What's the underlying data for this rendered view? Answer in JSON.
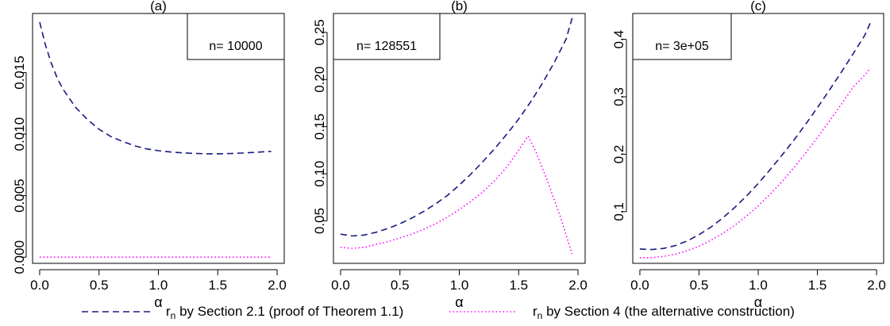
{
  "chart_data": [
    {
      "type": "line",
      "title": "(a)",
      "xlabel": "α",
      "ylabel": "",
      "xlim": [
        -0.06,
        2.06
      ],
      "ylim": [
        -0.0005,
        0.0198
      ],
      "xticks": [
        "0.0",
        "0.5",
        "1.0",
        "1.5",
        "2.0"
      ],
      "xtick_values": [
        0,
        0.5,
        1,
        1.5,
        2
      ],
      "yticks": [
        "0.000",
        "0.005",
        "0.010",
        "0.015"
      ],
      "ytick_values": [
        0,
        0.005,
        0.01,
        0.015
      ],
      "legend_text": "n= 10000",
      "legend_position": "top-right",
      "series": [
        {
          "key": "sec21",
          "x": [
            0,
            0.05,
            0.1,
            0.15,
            0.2,
            0.3,
            0.4,
            0.5,
            0.6,
            0.7,
            0.8,
            0.9,
            1.0,
            1.1,
            1.2,
            1.3,
            1.4,
            1.5,
            1.6,
            1.7,
            1.8,
            1.95
          ],
          "values": [
            0.0191,
            0.0172,
            0.0157,
            0.0145,
            0.0136,
            0.0122,
            0.0112,
            0.0104,
            0.0098,
            0.0094,
            0.00905,
            0.0088,
            0.00865,
            0.00855,
            0.00848,
            0.00843,
            0.0084,
            0.0084,
            0.00842,
            0.00846,
            0.00851,
            0.0086
          ]
        },
        {
          "key": "sec4",
          "x": [
            0,
            1.95
          ],
          "values": [
            0.0,
            0.0
          ]
        }
      ]
    },
    {
      "type": "line",
      "title": "(b)",
      "xlabel": "α",
      "ylabel": "",
      "xlim": [
        -0.06,
        2.06
      ],
      "ylim": [
        0.005,
        0.27
      ],
      "xticks": [
        "0.0",
        "0.5",
        "1.0",
        "1.5",
        "2.0"
      ],
      "xtick_values": [
        0,
        0.5,
        1,
        1.5,
        2
      ],
      "yticks": [
        "0.05",
        "0.10",
        "0.15",
        "0.20",
        "0.25"
      ],
      "ytick_values": [
        0.05,
        0.1,
        0.15,
        0.2,
        0.25
      ],
      "legend_text": "n= 128551",
      "legend_position": "top-left",
      "series": [
        {
          "key": "sec21",
          "x": [
            0,
            0.1,
            0.2,
            0.3,
            0.4,
            0.5,
            0.6,
            0.7,
            0.8,
            0.9,
            1.0,
            1.1,
            1.2,
            1.3,
            1.4,
            1.5,
            1.6,
            1.7,
            1.8,
            1.9,
            1.95
          ],
          "values": [
            0.036,
            0.034,
            0.035,
            0.038,
            0.042,
            0.047,
            0.053,
            0.06,
            0.068,
            0.077,
            0.088,
            0.1,
            0.113,
            0.127,
            0.142,
            0.158,
            0.176,
            0.196,
            0.218,
            0.243,
            0.265
          ]
        },
        {
          "key": "sec4",
          "x": [
            0,
            0.1,
            0.2,
            0.3,
            0.4,
            0.5,
            0.6,
            0.7,
            0.8,
            0.9,
            1.0,
            1.1,
            1.2,
            1.3,
            1.4,
            1.5,
            1.58,
            1.65,
            1.75,
            1.85,
            1.95
          ],
          "values": [
            0.022,
            0.021,
            0.022,
            0.025,
            0.028,
            0.032,
            0.036,
            0.041,
            0.047,
            0.054,
            0.062,
            0.071,
            0.081,
            0.093,
            0.107,
            0.125,
            0.14,
            0.122,
            0.09,
            0.055,
            0.015
          ]
        }
      ]
    },
    {
      "type": "line",
      "title": "(c)",
      "xlabel": "α",
      "ylabel": "",
      "xlim": [
        -0.06,
        2.06
      ],
      "ylim": [
        0.01,
        0.445
      ],
      "xticks": [
        "0.0",
        "0.5",
        "1.0",
        "1.5",
        "2.0"
      ],
      "xtick_values": [
        0,
        0.5,
        1,
        1.5,
        2
      ],
      "yticks": [
        "0.1",
        "0.2",
        "0.3",
        "0.4"
      ],
      "ytick_values": [
        0.1,
        0.2,
        0.3,
        0.4
      ],
      "legend_text": "n= 3e+05",
      "legend_position": "top-left",
      "series": [
        {
          "key": "sec21",
          "x": [
            0,
            0.1,
            0.2,
            0.3,
            0.4,
            0.5,
            0.6,
            0.7,
            0.8,
            0.9,
            1.0,
            1.1,
            1.2,
            1.3,
            1.4,
            1.5,
            1.6,
            1.7,
            1.8,
            1.9,
            1.95
          ],
          "values": [
            0.035,
            0.034,
            0.036,
            0.041,
            0.049,
            0.06,
            0.073,
            0.089,
            0.107,
            0.127,
            0.149,
            0.173,
            0.198,
            0.224,
            0.252,
            0.281,
            0.311,
            0.342,
            0.374,
            0.407,
            0.43
          ]
        },
        {
          "key": "sec4",
          "x": [
            0,
            0.1,
            0.2,
            0.3,
            0.4,
            0.5,
            0.6,
            0.7,
            0.8,
            0.9,
            1.0,
            1.1,
            1.2,
            1.3,
            1.4,
            1.5,
            1.6,
            1.7,
            1.8,
            1.9,
            1.95
          ],
          "values": [
            0.02,
            0.02,
            0.022,
            0.026,
            0.032,
            0.04,
            0.05,
            0.062,
            0.076,
            0.092,
            0.11,
            0.13,
            0.152,
            0.176,
            0.202,
            0.229,
            0.257,
            0.286,
            0.316,
            0.338,
            0.35
          ]
        }
      ]
    }
  ],
  "legend": {
    "items": [
      {
        "key": "sec21",
        "prefix": "r",
        "subscript": "n",
        "text": " by Section 2.1 (proof of Theorem 1.1)",
        "color": "#1a1a80",
        "dash": "dashed"
      },
      {
        "key": "sec4",
        "prefix": "r",
        "subscript": "n",
        "text": " by Section 4 (the alternative construction)",
        "color": "#ff00ff",
        "dash": "dotted"
      }
    ]
  }
}
